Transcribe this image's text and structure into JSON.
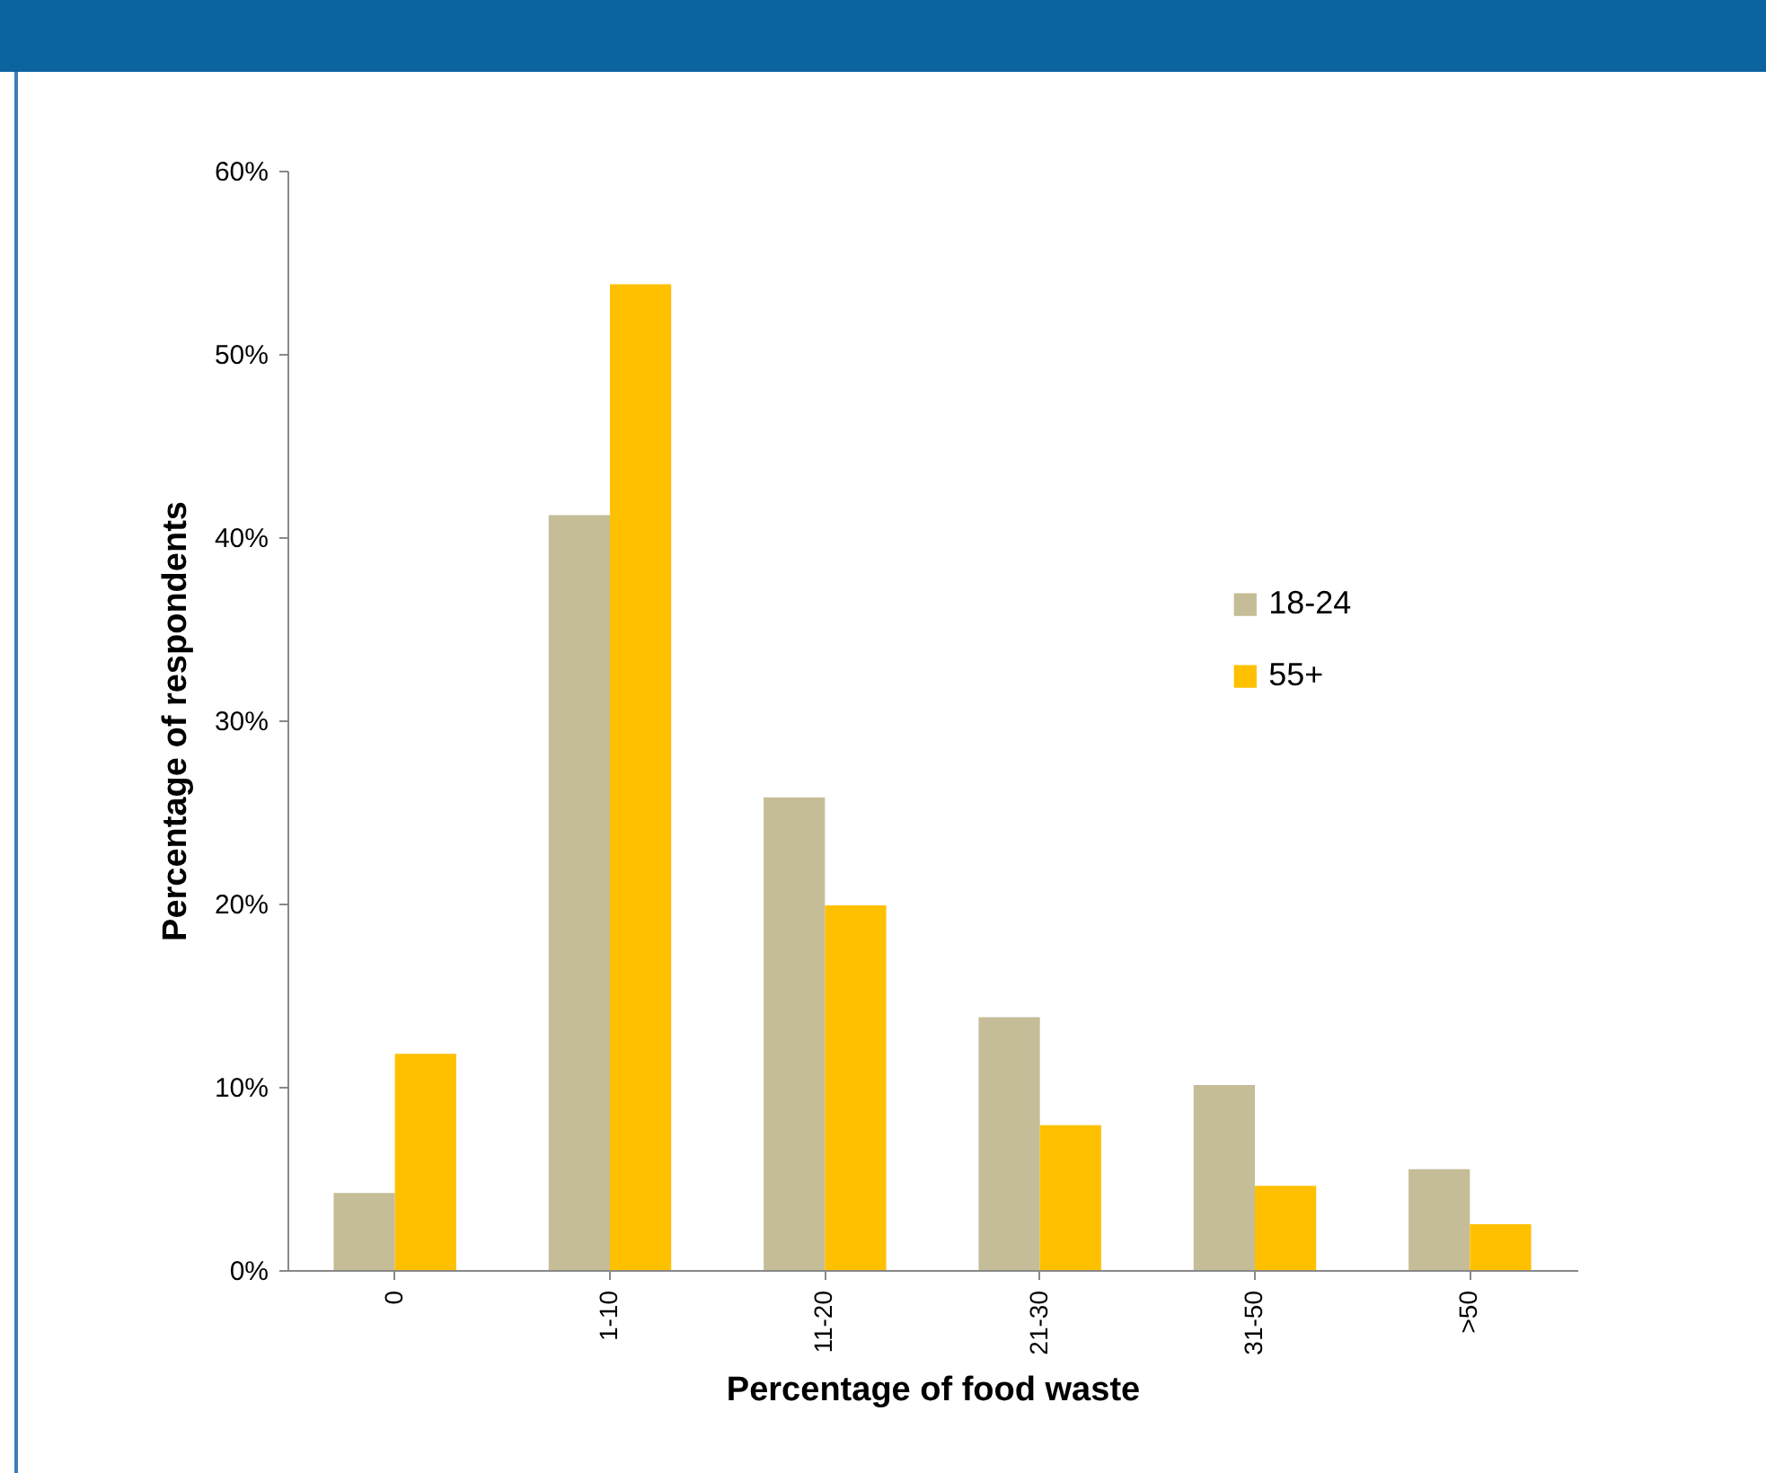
{
  "chart_data": {
    "type": "bar",
    "xlabel": "Percentage of food waste",
    "ylabel": "Percentage of respondents",
    "categories": [
      "0",
      "1-10",
      "11-20",
      "21-30",
      "31-50",
      ">50"
    ],
    "series": [
      {
        "name": "18-24",
        "color": "#c4bd97",
        "values": [
          4.2,
          41.2,
          25.8,
          13.8,
          10.1,
          5.5
        ]
      },
      {
        "name": "55+",
        "color": "#ffc000",
        "values": [
          11.8,
          53.8,
          19.9,
          7.9,
          4.6,
          2.5
        ]
      }
    ],
    "ylim": [
      0,
      60
    ],
    "yticks": [
      {
        "value": 0,
        "label": "0%"
      },
      {
        "value": 10,
        "label": "10%"
      },
      {
        "value": 20,
        "label": "20%"
      },
      {
        "value": 30,
        "label": "30%"
      },
      {
        "value": 40,
        "label": "40%"
      },
      {
        "value": 50,
        "label": "50%"
      },
      {
        "value": 60,
        "label": "60%"
      }
    ],
    "grid": false,
    "legend": "right"
  }
}
